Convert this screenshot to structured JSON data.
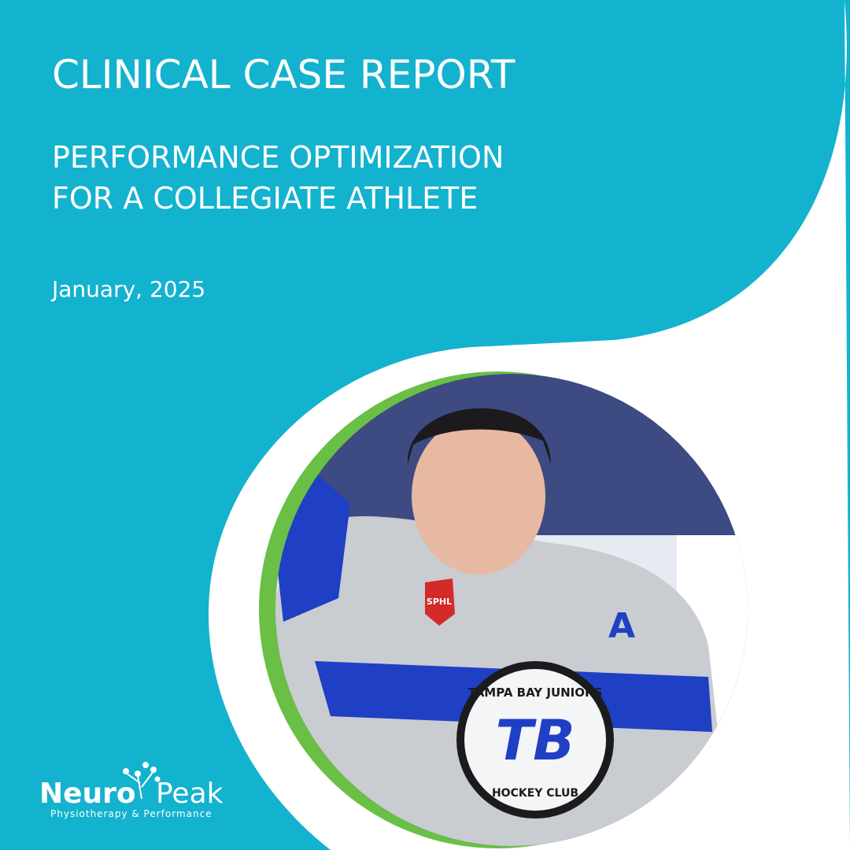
{
  "header": {
    "title": "CLINICAL CASE REPORT",
    "subtitle_lines": [
      "PERFORMANCE OPTIMIZATION",
      "FOR A COLLEGIATE ATHLETE"
    ],
    "date": "January, 2025"
  },
  "photo": {
    "crest_top": "TAMPA BAY JUNIORS",
    "crest_letters": "TB",
    "crest_bottom": "HOCKEY CLUB",
    "patch": "SPHL",
    "captain_mark": "A"
  },
  "logo": {
    "word1": "Neuro",
    "word2": "Peak",
    "tagline": "Physiotherapy & Performance"
  }
}
